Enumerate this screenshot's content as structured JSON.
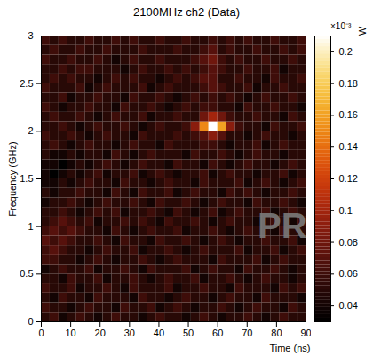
{
  "chart_data": {
    "type": "heatmap",
    "title": "2100MHz ch2  (Data)",
    "x_label": "Time (ns)",
    "y_label": "Frequency (GHz)",
    "xlim": [
      0,
      90
    ],
    "ylim": [
      0,
      3
    ],
    "xticks": [
      0,
      10,
      20,
      30,
      40,
      50,
      60,
      70,
      80,
      90
    ],
    "yticks": [
      0,
      0.5,
      1,
      1.5,
      2,
      2.5,
      3
    ],
    "xbins": [
      0,
      3,
      6,
      9,
      12,
      15,
      18,
      21,
      24,
      27,
      30,
      33,
      36,
      39,
      42,
      45,
      48,
      51,
      54,
      57,
      60,
      63,
      66,
      69,
      72,
      75,
      78,
      81,
      84,
      87,
      90
    ],
    "ybins": [
      0,
      0.1,
      0.2,
      0.3,
      0.4,
      0.5,
      0.6,
      0.7,
      0.8,
      0.9,
      1.0,
      1.1,
      1.2,
      1.3,
      1.4,
      1.5,
      1.6,
      1.7,
      1.8,
      1.9,
      2.0,
      2.1,
      2.2,
      2.3,
      2.4,
      2.5,
      2.6,
      2.7,
      2.8,
      2.9,
      3.0
    ],
    "cells": [
      [
        0.05,
        0.06,
        0.04,
        0.05,
        0.06,
        0.05,
        0.04,
        0.05,
        0.06,
        0.05,
        0.05,
        0.04,
        0.05,
        0.06,
        0.05,
        0.05,
        0.04,
        0.05,
        0.06,
        0.05,
        0.04,
        0.05,
        0.05,
        0.06,
        0.05,
        0.04,
        0.05,
        0.06,
        0.05,
        0.05
      ],
      [
        0.06,
        0.05,
        0.05,
        0.04,
        0.05,
        0.06,
        0.05,
        0.05,
        0.04,
        0.06,
        0.05,
        0.05,
        0.06,
        0.04,
        0.05,
        0.06,
        0.05,
        0.04,
        0.05,
        0.05,
        0.06,
        0.05,
        0.04,
        0.05,
        0.06,
        0.05,
        0.05,
        0.04,
        0.06,
        0.05
      ],
      [
        0.05,
        0.04,
        0.06,
        0.05,
        0.05,
        0.04,
        0.06,
        0.05,
        0.05,
        0.05,
        0.04,
        0.06,
        0.05,
        0.05,
        0.04,
        0.05,
        0.06,
        0.05,
        0.05,
        0.04,
        0.05,
        0.06,
        0.05,
        0.05,
        0.04,
        0.06,
        0.05,
        0.05,
        0.05,
        0.04
      ],
      [
        0.06,
        0.05,
        0.05,
        0.06,
        0.04,
        0.05,
        0.05,
        0.06,
        0.05,
        0.04,
        0.06,
        0.05,
        0.05,
        0.05,
        0.06,
        0.04,
        0.05,
        0.05,
        0.06,
        0.05,
        0.05,
        0.04,
        0.06,
        0.05,
        0.05,
        0.05,
        0.04,
        0.06,
        0.05,
        0.06
      ],
      [
        0.05,
        0.05,
        0.04,
        0.06,
        0.05,
        0.05,
        0.06,
        0.04,
        0.05,
        0.05,
        0.06,
        0.05,
        0.04,
        0.05,
        0.06,
        0.05,
        0.05,
        0.06,
        0.04,
        0.05,
        0.05,
        0.06,
        0.05,
        0.04,
        0.05,
        0.06,
        0.05,
        0.05,
        0.04,
        0.05
      ],
      [
        0.04,
        0.05,
        0.06,
        0.05,
        0.05,
        0.06,
        0.04,
        0.05,
        0.05,
        0.06,
        0.05,
        0.04,
        0.06,
        0.05,
        0.05,
        0.05,
        0.06,
        0.04,
        0.05,
        0.06,
        0.05,
        0.05,
        0.04,
        0.06,
        0.05,
        0.05,
        0.06,
        0.05,
        0.04,
        0.05
      ],
      [
        0.06,
        0.06,
        0.05,
        0.05,
        0.04,
        0.05,
        0.06,
        0.05,
        0.04,
        0.05,
        0.05,
        0.06,
        0.05,
        0.04,
        0.05,
        0.06,
        0.05,
        0.05,
        0.05,
        0.04,
        0.06,
        0.05,
        0.05,
        0.05,
        0.06,
        0.04,
        0.05,
        0.06,
        0.05,
        0.05
      ],
      [
        0.06,
        0.07,
        0.06,
        0.05,
        0.05,
        0.04,
        0.05,
        0.06,
        0.05,
        0.05,
        0.06,
        0.04,
        0.05,
        0.05,
        0.06,
        0.05,
        0.04,
        0.05,
        0.06,
        0.05,
        0.05,
        0.05,
        0.06,
        0.04,
        0.05,
        0.05,
        0.06,
        0.04,
        0.05,
        0.06
      ],
      [
        0.07,
        0.06,
        0.07,
        0.06,
        0.05,
        0.05,
        0.06,
        0.05,
        0.04,
        0.06,
        0.05,
        0.05,
        0.04,
        0.06,
        0.05,
        0.05,
        0.06,
        0.05,
        0.04,
        0.05,
        0.06,
        0.05,
        0.04,
        0.05,
        0.05,
        0.06,
        0.05,
        0.05,
        0.06,
        0.04
      ],
      [
        0.06,
        0.07,
        0.06,
        0.07,
        0.06,
        0.05,
        0.05,
        0.04,
        0.06,
        0.05,
        0.04,
        0.05,
        0.06,
        0.05,
        0.05,
        0.06,
        0.04,
        0.05,
        0.05,
        0.06,
        0.05,
        0.04,
        0.05,
        0.06,
        0.05,
        0.05,
        0.04,
        0.06,
        0.05,
        0.05
      ],
      [
        0.05,
        0.06,
        0.07,
        0.06,
        0.05,
        0.06,
        0.04,
        0.05,
        0.05,
        0.06,
        0.05,
        0.06,
        0.05,
        0.04,
        0.06,
        0.05,
        0.05,
        0.06,
        0.05,
        0.04,
        0.05,
        0.06,
        0.05,
        0.05,
        0.04,
        0.05,
        0.06,
        0.05,
        0.04,
        0.06
      ],
      [
        0.05,
        0.05,
        0.06,
        0.05,
        0.04,
        0.05,
        0.06,
        0.05,
        0.06,
        0.04,
        0.05,
        0.05,
        0.06,
        0.05,
        0.04,
        0.06,
        0.05,
        0.04,
        0.05,
        0.06,
        0.04,
        0.05,
        0.06,
        0.05,
        0.05,
        0.06,
        0.04,
        0.05,
        0.06,
        0.05
      ],
      [
        0.04,
        0.05,
        0.05,
        0.06,
        0.05,
        0.04,
        0.05,
        0.06,
        0.05,
        0.05,
        0.06,
        0.05,
        0.04,
        0.06,
        0.05,
        0.05,
        0.06,
        0.05,
        0.04,
        0.05,
        0.06,
        0.05,
        0.05,
        0.04,
        0.06,
        0.05,
        0.05,
        0.06,
        0.05,
        0.04
      ],
      [
        0.05,
        0.04,
        0.05,
        0.05,
        0.06,
        0.05,
        0.05,
        0.04,
        0.06,
        0.05,
        0.04,
        0.06,
        0.05,
        0.05,
        0.06,
        0.04,
        0.05,
        0.06,
        0.05,
        0.05,
        0.04,
        0.06,
        0.05,
        0.06,
        0.05,
        0.04,
        0.05,
        0.05,
        0.06,
        0.05
      ],
      [
        0.04,
        0.04,
        0.05,
        0.04,
        0.05,
        0.06,
        0.05,
        0.05,
        0.04,
        0.06,
        0.05,
        0.05,
        0.04,
        0.05,
        0.06,
        0.05,
        0.05,
        0.04,
        0.06,
        0.05,
        0.05,
        0.05,
        0.06,
        0.04,
        0.05,
        0.06,
        0.05,
        0.04,
        0.05,
        0.06
      ],
      [
        0.04,
        0.03,
        0.04,
        0.05,
        0.04,
        0.05,
        0.06,
        0.04,
        0.05,
        0.05,
        0.06,
        0.04,
        0.05,
        0.06,
        0.05,
        0.04,
        0.05,
        0.05,
        0.06,
        0.04,
        0.05,
        0.06,
        0.05,
        0.05,
        0.04,
        0.05,
        0.05,
        0.06,
        0.04,
        0.05
      ],
      [
        0.04,
        0.04,
        0.03,
        0.04,
        0.05,
        0.04,
        0.05,
        0.06,
        0.05,
        0.04,
        0.05,
        0.06,
        0.05,
        0.05,
        0.04,
        0.06,
        0.05,
        0.05,
        0.04,
        0.06,
        0.05,
        0.04,
        0.05,
        0.06,
        0.05,
        0.05,
        0.04,
        0.05,
        0.06,
        0.05
      ],
      [
        0.05,
        0.04,
        0.04,
        0.05,
        0.04,
        0.05,
        0.05,
        0.04,
        0.06,
        0.05,
        0.04,
        0.05,
        0.06,
        0.05,
        0.05,
        0.05,
        0.04,
        0.06,
        0.05,
        0.05,
        0.06,
        0.05,
        0.04,
        0.05,
        0.06,
        0.05,
        0.05,
        0.04,
        0.05,
        0.05
      ],
      [
        0.05,
        0.06,
        0.05,
        0.04,
        0.05,
        0.06,
        0.05,
        0.05,
        0.04,
        0.05,
        0.06,
        0.05,
        0.05,
        0.04,
        0.06,
        0.05,
        0.05,
        0.05,
        0.06,
        0.06,
        0.05,
        0.04,
        0.05,
        0.05,
        0.06,
        0.04,
        0.05,
        0.06,
        0.05,
        0.05
      ],
      [
        0.06,
        0.05,
        0.05,
        0.06,
        0.05,
        0.04,
        0.05,
        0.06,
        0.05,
        0.05,
        0.04,
        0.06,
        0.05,
        0.05,
        0.05,
        0.06,
        0.05,
        0.06,
        0.07,
        0.09,
        0.07,
        0.05,
        0.05,
        0.04,
        0.05,
        0.06,
        0.05,
        0.05,
        0.04,
        0.05
      ],
      [
        0.05,
        0.05,
        0.06,
        0.05,
        0.04,
        0.05,
        0.06,
        0.05,
        0.05,
        0.06,
        0.05,
        0.04,
        0.05,
        0.06,
        0.05,
        0.05,
        0.06,
        0.09,
        0.15,
        0.21,
        0.16,
        0.09,
        0.06,
        0.05,
        0.05,
        0.04,
        0.06,
        0.05,
        0.05,
        0.06
      ],
      [
        0.05,
        0.06,
        0.05,
        0.05,
        0.06,
        0.05,
        0.04,
        0.05,
        0.06,
        0.05,
        0.05,
        0.06,
        0.04,
        0.05,
        0.05,
        0.06,
        0.05,
        0.05,
        0.08,
        0.1,
        0.08,
        0.06,
        0.05,
        0.05,
        0.06,
        0.05,
        0.05,
        0.04,
        0.06,
        0.05
      ],
      [
        0.06,
        0.05,
        0.04,
        0.05,
        0.05,
        0.06,
        0.05,
        0.05,
        0.04,
        0.06,
        0.05,
        0.05,
        0.06,
        0.05,
        0.04,
        0.05,
        0.06,
        0.05,
        0.06,
        0.06,
        0.05,
        0.05,
        0.04,
        0.06,
        0.05,
        0.05,
        0.06,
        0.05,
        0.05,
        0.04
      ],
      [
        0.05,
        0.05,
        0.06,
        0.04,
        0.05,
        0.05,
        0.06,
        0.05,
        0.05,
        0.04,
        0.06,
        0.05,
        0.05,
        0.06,
        0.05,
        0.04,
        0.05,
        0.06,
        0.05,
        0.06,
        0.05,
        0.06,
        0.05,
        0.04,
        0.05,
        0.06,
        0.05,
        0.05,
        0.06,
        0.05
      ],
      [
        0.06,
        0.05,
        0.05,
        0.05,
        0.06,
        0.04,
        0.05,
        0.06,
        0.05,
        0.05,
        0.05,
        0.06,
        0.04,
        0.05,
        0.06,
        0.05,
        0.05,
        0.05,
        0.06,
        0.07,
        0.06,
        0.05,
        0.05,
        0.06,
        0.04,
        0.05,
        0.05,
        0.06,
        0.05,
        0.05
      ],
      [
        0.05,
        0.06,
        0.05,
        0.06,
        0.05,
        0.05,
        0.04,
        0.05,
        0.06,
        0.05,
        0.06,
        0.05,
        0.05,
        0.04,
        0.05,
        0.06,
        0.05,
        0.06,
        0.07,
        0.07,
        0.05,
        0.05,
        0.06,
        0.05,
        0.05,
        0.04,
        0.06,
        0.05,
        0.05,
        0.06
      ],
      [
        0.05,
        0.05,
        0.06,
        0.05,
        0.06,
        0.06,
        0.05,
        0.05,
        0.05,
        0.04,
        0.05,
        0.06,
        0.05,
        0.05,
        0.06,
        0.05,
        0.06,
        0.05,
        0.06,
        0.07,
        0.06,
        0.05,
        0.05,
        0.06,
        0.05,
        0.05,
        0.06,
        0.04,
        0.05,
        0.05
      ],
      [
        0.06,
        0.05,
        0.05,
        0.06,
        0.05,
        0.05,
        0.06,
        0.05,
        0.04,
        0.05,
        0.06,
        0.05,
        0.05,
        0.06,
        0.05,
        0.05,
        0.05,
        0.06,
        0.07,
        0.08,
        0.06,
        0.05,
        0.06,
        0.05,
        0.05,
        0.06,
        0.05,
        0.05,
        0.06,
        0.05
      ],
      [
        0.05,
        0.06,
        0.05,
        0.05,
        0.06,
        0.05,
        0.05,
        0.06,
        0.05,
        0.05,
        0.05,
        0.06,
        0.05,
        0.05,
        0.05,
        0.06,
        0.05,
        0.05,
        0.06,
        0.07,
        0.05,
        0.06,
        0.05,
        0.05,
        0.06,
        0.05,
        0.05,
        0.06,
        0.05,
        0.06
      ],
      [
        0.06,
        0.05,
        0.06,
        0.05,
        0.05,
        0.06,
        0.05,
        0.05,
        0.06,
        0.05,
        0.06,
        0.05,
        0.05,
        0.06,
        0.05,
        0.05,
        0.06,
        0.05,
        0.05,
        0.06,
        0.05,
        0.06,
        0.05,
        0.06,
        0.05,
        0.05,
        0.06,
        0.05,
        0.05,
        0.06
      ]
    ],
    "colorbar_lim": [
      0.03,
      0.21
    ],
    "colorbar_ticks": [
      0.04,
      0.06,
      0.08,
      0.1,
      0.12,
      0.14,
      0.16,
      0.18,
      0.2
    ],
    "colorbar_label": "W",
    "colorbar_multiplier": "×10⁻³",
    "annotation": "PR"
  }
}
